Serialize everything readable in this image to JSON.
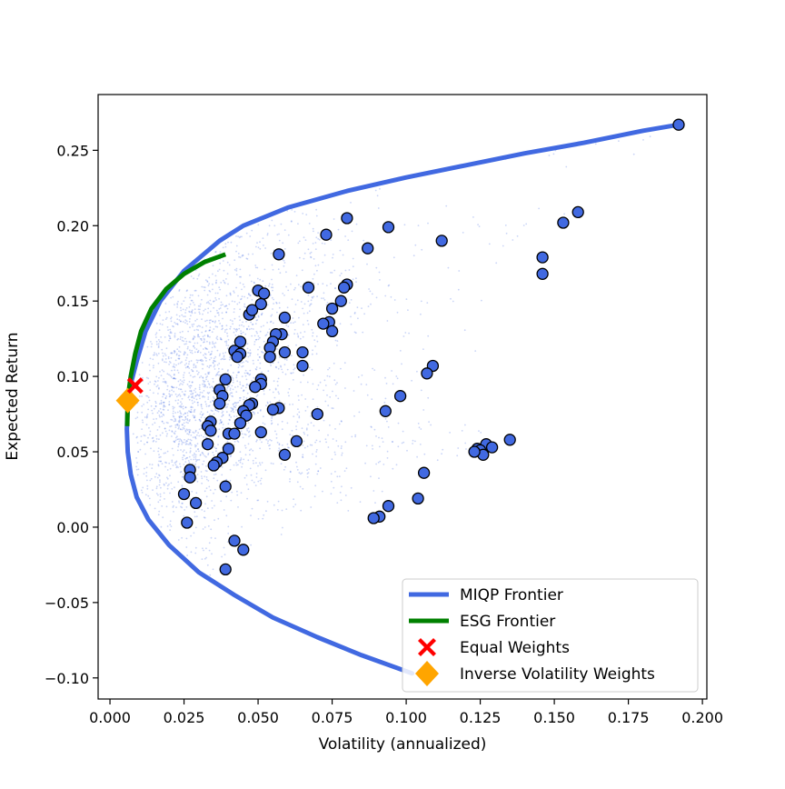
{
  "chart_data": {
    "type": "scatter",
    "title": "",
    "xlabel": "Volatility (annualized)",
    "ylabel": "Expected Return",
    "xlim": [
      -0.004,
      0.2015
    ],
    "ylim": [
      -0.114,
      0.287
    ],
    "xticks": [
      0.0,
      0.025,
      0.05,
      0.075,
      0.1,
      0.125,
      0.15,
      0.175,
      0.2
    ],
    "xtick_labels": [
      "0.000",
      "0.025",
      "0.050",
      "0.075",
      "0.100",
      "0.125",
      "0.150",
      "0.175",
      "0.200"
    ],
    "yticks": [
      -0.1,
      -0.05,
      0.0,
      0.05,
      0.1,
      0.15,
      0.2,
      0.25
    ],
    "ytick_labels": [
      "−0.10",
      "−0.05",
      "0.00",
      "0.05",
      "0.10",
      "0.15",
      "0.20",
      "0.25"
    ],
    "grid": false,
    "legend_position": "bottom-right",
    "colors": {
      "miqp": "#4169e1",
      "esg": "#008000",
      "assets_fill": "#4169e1",
      "assets_edge": "#000000",
      "cloud": "#4169e1",
      "equal": "#ff0000",
      "inverse": "#ffa500"
    },
    "series": [
      {
        "name": "MIQP Frontier",
        "kind": "line",
        "points": [
          [
            0.102,
            -0.097
          ],
          [
            0.085,
            -0.085
          ],
          [
            0.07,
            -0.073
          ],
          [
            0.055,
            -0.06
          ],
          [
            0.042,
            -0.045
          ],
          [
            0.03,
            -0.03
          ],
          [
            0.02,
            -0.012
          ],
          [
            0.013,
            0.005
          ],
          [
            0.009,
            0.02
          ],
          [
            0.007,
            0.035
          ],
          [
            0.006,
            0.05
          ],
          [
            0.0057,
            0.065
          ],
          [
            0.006,
            0.08
          ],
          [
            0.007,
            0.095
          ],
          [
            0.009,
            0.11
          ],
          [
            0.012,
            0.13
          ],
          [
            0.017,
            0.15
          ],
          [
            0.025,
            0.17
          ],
          [
            0.037,
            0.19
          ],
          [
            0.045,
            0.2
          ],
          [
            0.06,
            0.212
          ],
          [
            0.08,
            0.223
          ],
          [
            0.1,
            0.232
          ],
          [
            0.12,
            0.24
          ],
          [
            0.14,
            0.248
          ],
          [
            0.16,
            0.255
          ],
          [
            0.18,
            0.263
          ],
          [
            0.192,
            0.267
          ]
        ]
      },
      {
        "name": "ESG Frontier",
        "kind": "line",
        "points": [
          [
            0.0058,
            0.067
          ],
          [
            0.006,
            0.085
          ],
          [
            0.007,
            0.1
          ],
          [
            0.0085,
            0.115
          ],
          [
            0.0105,
            0.13
          ],
          [
            0.014,
            0.145
          ],
          [
            0.019,
            0.158
          ],
          [
            0.025,
            0.168
          ],
          [
            0.032,
            0.176
          ],
          [
            0.039,
            0.181
          ]
        ]
      },
      {
        "name": "Equal Weights",
        "kind": "marker",
        "points": [
          [
            0.0085,
            0.094
          ]
        ]
      },
      {
        "name": "Inverse Volatility Weights",
        "kind": "marker",
        "points": [
          [
            0.006,
            0.084
          ]
        ]
      },
      {
        "name": "",
        "kind": "assets",
        "points": [
          [
            0.192,
            0.267
          ],
          [
            0.158,
            0.209
          ],
          [
            0.153,
            0.202
          ],
          [
            0.146,
            0.179
          ],
          [
            0.146,
            0.168
          ],
          [
            0.112,
            0.19
          ],
          [
            0.094,
            0.199
          ],
          [
            0.087,
            0.185
          ],
          [
            0.08,
            0.205
          ],
          [
            0.073,
            0.194
          ],
          [
            0.057,
            0.181
          ],
          [
            0.08,
            0.161
          ],
          [
            0.079,
            0.159
          ],
          [
            0.067,
            0.159
          ],
          [
            0.078,
            0.15
          ],
          [
            0.075,
            0.145
          ],
          [
            0.074,
            0.136
          ],
          [
            0.072,
            0.135
          ],
          [
            0.075,
            0.13
          ],
          [
            0.05,
            0.157
          ],
          [
            0.052,
            0.155
          ],
          [
            0.051,
            0.148
          ],
          [
            0.047,
            0.141
          ],
          [
            0.048,
            0.144
          ],
          [
            0.059,
            0.139
          ],
          [
            0.058,
            0.128
          ],
          [
            0.056,
            0.128
          ],
          [
            0.055,
            0.123
          ],
          [
            0.054,
            0.119
          ],
          [
            0.059,
            0.116
          ],
          [
            0.065,
            0.116
          ],
          [
            0.065,
            0.107
          ],
          [
            0.054,
            0.113
          ],
          [
            0.044,
            0.123
          ],
          [
            0.042,
            0.117
          ],
          [
            0.044,
            0.115
          ],
          [
            0.043,
            0.113
          ],
          [
            0.051,
            0.098
          ],
          [
            0.051,
            0.095
          ],
          [
            0.049,
            0.093
          ],
          [
            0.039,
            0.098
          ],
          [
            0.037,
            0.091
          ],
          [
            0.038,
            0.087
          ],
          [
            0.037,
            0.082
          ],
          [
            0.048,
            0.082
          ],
          [
            0.047,
            0.081
          ],
          [
            0.045,
            0.077
          ],
          [
            0.046,
            0.074
          ],
          [
            0.044,
            0.069
          ],
          [
            0.057,
            0.079
          ],
          [
            0.055,
            0.078
          ],
          [
            0.051,
            0.063
          ],
          [
            0.04,
            0.062
          ],
          [
            0.042,
            0.062
          ],
          [
            0.034,
            0.07
          ],
          [
            0.033,
            0.067
          ],
          [
            0.034,
            0.064
          ],
          [
            0.033,
            0.055
          ],
          [
            0.04,
            0.052
          ],
          [
            0.038,
            0.046
          ],
          [
            0.036,
            0.043
          ],
          [
            0.035,
            0.041
          ],
          [
            0.027,
            0.038
          ],
          [
            0.027,
            0.033
          ],
          [
            0.029,
            0.016
          ],
          [
            0.025,
            0.022
          ],
          [
            0.026,
            0.003
          ],
          [
            0.039,
            0.027
          ],
          [
            0.063,
            0.057
          ],
          [
            0.059,
            0.048
          ],
          [
            0.07,
            0.075
          ],
          [
            0.042,
            -0.009
          ],
          [
            0.045,
            -0.015
          ],
          [
            0.039,
            -0.028
          ],
          [
            0.109,
            0.107
          ],
          [
            0.107,
            0.102
          ],
          [
            0.098,
            0.087
          ],
          [
            0.093,
            0.077
          ],
          [
            0.135,
            0.058
          ],
          [
            0.127,
            0.055
          ],
          [
            0.129,
            0.053
          ],
          [
            0.124,
            0.052
          ],
          [
            0.125,
            0.051
          ],
          [
            0.126,
            0.048
          ],
          [
            0.123,
            0.05
          ],
          [
            0.106,
            0.036
          ],
          [
            0.104,
            0.019
          ],
          [
            0.094,
            0.014
          ],
          [
            0.091,
            0.007
          ],
          [
            0.089,
            0.006
          ]
        ]
      }
    ]
  },
  "legend": {
    "miqp": "MIQP Frontier",
    "esg": "ESG Frontier",
    "equal": "Equal Weights",
    "inverse": "Inverse Volatility Weights"
  }
}
